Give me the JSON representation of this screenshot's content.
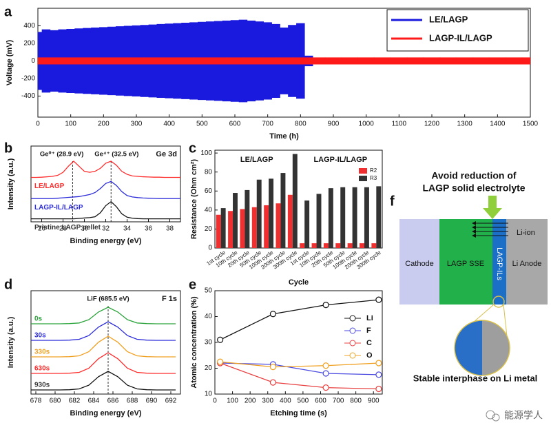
{
  "chart_data": [
    {
      "panel": "a",
      "type": "band",
      "xlabel": "Time (h)",
      "ylabel": "Voltage (mV)",
      "xlim": [
        0,
        1500
      ],
      "xticks": [
        0,
        100,
        200,
        300,
        400,
        500,
        600,
        700,
        800,
        900,
        1000,
        1100,
        1200,
        1300,
        1400,
        1500
      ],
      "ylim": [
        -640,
        600
      ],
      "yticks": [
        -400,
        -200,
        0,
        200,
        400
      ],
      "legend": "upper right",
      "series": [
        {
          "name": "LE/LAGP",
          "color": "#1a1adf",
          "x": [
            0,
            25,
            50,
            75,
            100,
            125,
            150,
            175,
            200,
            225,
            250,
            275,
            300,
            325,
            350,
            375,
            400,
            425,
            450,
            475,
            500,
            525,
            550,
            575,
            600,
            625,
            650,
            675,
            700,
            725,
            750,
            775,
            800,
            825
          ],
          "upper": [
            330,
            360,
            350,
            360,
            365,
            370,
            375,
            380,
            385,
            390,
            395,
            400,
            405,
            410,
            415,
            420,
            425,
            430,
            435,
            440,
            445,
            450,
            455,
            460,
            465,
            470,
            460,
            450,
            440,
            420,
            380,
            410,
            430,
            60
          ],
          "lower": [
            -330,
            -360,
            -350,
            -360,
            -365,
            -370,
            -375,
            -380,
            -385,
            -390,
            -395,
            -400,
            -405,
            -410,
            -415,
            -420,
            -425,
            -430,
            -435,
            -440,
            -445,
            -450,
            -455,
            -460,
            -465,
            -470,
            -460,
            -450,
            -440,
            -420,
            -380,
            -410,
            -430,
            -60
          ]
        },
        {
          "name": "LAGP-IL/LAGP",
          "color": "#ff1a1a",
          "x": [
            0,
            50,
            100,
            150,
            200,
            250,
            300,
            350,
            400,
            450,
            500,
            550,
            600,
            650,
            700,
            750,
            800,
            850,
            900,
            950,
            1000,
            1050,
            1100,
            1150,
            1200,
            1250,
            1300,
            1350,
            1400,
            1450,
            1500
          ],
          "upper": [
            40,
            40,
            40,
            40,
            40,
            40,
            40,
            40,
            40,
            40,
            40,
            40,
            40,
            40,
            40,
            40,
            40,
            40,
            40,
            40,
            40,
            40,
            40,
            40,
            40,
            40,
            40,
            40,
            40,
            40,
            40
          ],
          "lower": [
            -40,
            -40,
            -40,
            -40,
            -40,
            -40,
            -40,
            -40,
            -40,
            -40,
            -40,
            -40,
            -40,
            -40,
            -40,
            -40,
            -40,
            -40,
            -40,
            -40,
            -40,
            -40,
            -40,
            -40,
            -40,
            -40,
            -40,
            -40,
            -40,
            -40,
            -40
          ]
        }
      ]
    },
    {
      "panel": "b",
      "type": "line",
      "title": "Ge 3d",
      "xlabel": "Binding energy (eV)",
      "ylabel": "Intensity (a.u.)",
      "xlim": [
        25,
        39
      ],
      "xticks": [
        26,
        28,
        30,
        32,
        34,
        36,
        38
      ],
      "ylim": [
        -0.15,
        3.6
      ],
      "vlines": [
        28.9,
        32.5
      ],
      "annotations": [
        "Ge⁰⁺ (28.9 eV)",
        "Ge⁴⁺ (32.5 eV)"
      ],
      "x": [
        25,
        25.5,
        26,
        26.5,
        27,
        27.5,
        28,
        28.5,
        29,
        29.5,
        30,
        30.5,
        31,
        31.5,
        32,
        32.5,
        33,
        33.5,
        34,
        34.5,
        35,
        35.5,
        36,
        36.5,
        37,
        37.5,
        38,
        38.5,
        39
      ],
      "series": [
        {
          "name": "LE/LAGP",
          "color": "#ff2a2a",
          "values": [
            2.05,
            2.05,
            2.06,
            2.08,
            2.1,
            2.15,
            2.3,
            2.6,
            2.85,
            2.6,
            2.35,
            2.3,
            2.35,
            2.5,
            2.75,
            2.85,
            2.65,
            2.35,
            2.2,
            2.12,
            2.1,
            2.08,
            2.07,
            2.06,
            2.06,
            2.05,
            2.05,
            2.05,
            2.05
          ]
        },
        {
          "name": "LAGP-IL/LAGP",
          "color": "#2b2bd9",
          "values": [
            1.0,
            1.0,
            1.0,
            1.0,
            1.0,
            1.02,
            1.04,
            1.06,
            1.08,
            1.1,
            1.15,
            1.2,
            1.3,
            1.5,
            1.75,
            1.85,
            1.65,
            1.35,
            1.15,
            1.08,
            1.05,
            1.03,
            1.02,
            1.01,
            1.0,
            1.0,
            1.0,
            1.0,
            1.0
          ]
        },
        {
          "name": "Pristine LAGP pellet",
          "color": "#111111",
          "values": [
            0,
            0,
            0,
            0,
            0,
            0,
            0,
            0,
            0,
            0.02,
            0.04,
            0.06,
            0.1,
            0.3,
            0.65,
            0.85,
            0.6,
            0.25,
            0.08,
            0.03,
            0.01,
            0,
            0,
            0,
            0,
            0,
            0,
            0,
            0
          ]
        }
      ]
    },
    {
      "panel": "c",
      "type": "bar",
      "xlabel": "Cycle",
      "ylabel": "Resistance (Ohm cm²)",
      "ylim": [
        0,
        103
      ],
      "yticks": [
        0,
        20,
        40,
        60,
        80,
        100
      ],
      "legend": "upper right",
      "group_labels": [
        "LE/LAGP",
        "LAGP-IL/LAGP"
      ],
      "categories": [
        "1st cycle",
        "10th cycle",
        "20th cycle",
        "50th cycle",
        "100th cycle",
        "200th cycle",
        "300th cycle",
        "1st cycle",
        "10th cycle",
        "20th cycle",
        "50th cycle",
        "100th cycle",
        "200th cycle",
        "300th cycle"
      ],
      "series": [
        {
          "name": "R2",
          "color": "#f03030",
          "values": [
            35,
            39,
            41,
            43,
            45,
            47,
            56,
            5,
            5,
            5,
            5,
            5,
            5,
            5
          ]
        },
        {
          "name": "R3",
          "color": "#333333",
          "values": [
            42,
            58,
            61,
            72,
            73,
            79,
            99,
            50,
            57,
            63,
            64,
            64,
            64,
            65
          ]
        }
      ]
    },
    {
      "panel": "d",
      "type": "line",
      "title": "F 1s",
      "xlabel": "Binding energy (eV)",
      "ylabel": "Intensity (a.u.)",
      "xlim": [
        677.5,
        693
      ],
      "xticks": [
        678,
        680,
        682,
        684,
        686,
        688,
        690,
        692
      ],
      "ylim": [
        -0.2,
        4.8
      ],
      "vlines": [
        685.5
      ],
      "annotations": [
        "LiF (685.5 eV)"
      ],
      "x": [
        677.5,
        678.5,
        679.5,
        680.5,
        681.5,
        682.5,
        683.5,
        684.5,
        685.5,
        686.5,
        687.5,
        688.5,
        689.5,
        690.5,
        691.5,
        692.5
      ],
      "series": [
        {
          "name": "0s",
          "color": "#2aa33a",
          "values": [
            3.2,
            3.2,
            3.2,
            3.2,
            3.21,
            3.24,
            3.4,
            3.77,
            4.0,
            3.77,
            3.4,
            3.24,
            3.21,
            3.2,
            3.2,
            3.2
          ]
        },
        {
          "name": "30s",
          "color": "#2b2bd9",
          "values": [
            2.4,
            2.4,
            2.4,
            2.4,
            2.41,
            2.45,
            2.63,
            3.04,
            3.3,
            3.04,
            2.63,
            2.45,
            2.41,
            2.4,
            2.4,
            2.4
          ]
        },
        {
          "name": "330s",
          "color": "#f0a020",
          "values": [
            1.6,
            1.6,
            1.6,
            1.6,
            1.61,
            1.65,
            1.85,
            2.31,
            2.6,
            2.31,
            1.85,
            1.65,
            1.61,
            1.6,
            1.6,
            1.6
          ]
        },
        {
          "name": "630s",
          "color": "#ff2a2a",
          "values": [
            0.8,
            0.8,
            0.8,
            0.8,
            0.81,
            0.85,
            1.05,
            1.51,
            1.8,
            1.51,
            1.05,
            0.85,
            0.81,
            0.8,
            0.8,
            0.8
          ]
        },
        {
          "name": "930s",
          "color": "#111111",
          "values": [
            0,
            0,
            0,
            0,
            0.01,
            0.05,
            0.23,
            0.64,
            0.9,
            0.64,
            0.23,
            0.05,
            0.01,
            0,
            0,
            0
          ]
        }
      ]
    },
    {
      "panel": "e",
      "type": "line",
      "markers": "open-circle",
      "xlabel": "Etching time (s)",
      "ylabel": "Atomic concentration (%)",
      "xlim": [
        0,
        950
      ],
      "xticks": [
        0,
        100,
        200,
        300,
        400,
        500,
        600,
        700,
        800,
        900
      ],
      "ylim": [
        10,
        50
      ],
      "yticks": [
        10,
        20,
        30,
        40,
        50
      ],
      "legend": "right",
      "x": [
        30,
        330,
        630,
        930
      ],
      "series": [
        {
          "name": "Li",
          "color": "#111111",
          "values": [
            31,
            41,
            44.5,
            46.5
          ]
        },
        {
          "name": "F",
          "color": "#4a4ae0",
          "values": [
            22,
            21.5,
            18,
            17.5
          ]
        },
        {
          "name": "C",
          "color": "#e84040",
          "values": [
            22,
            14.5,
            12.5,
            12
          ]
        },
        {
          "name": "O",
          "color": "#f0a020",
          "values": [
            22.5,
            20.5,
            21,
            22
          ]
        }
      ]
    }
  ],
  "diagram": {
    "panel": "f",
    "heading": [
      "Avoid reduction of",
      "LAGP solid electrolyte"
    ],
    "cathode": "Cathode",
    "sse": "LAGP SSE",
    "interlayer": "LAGP-ILs",
    "anode": "Li Anode",
    "ion": "Li-ion",
    "caption": "Stable interphase on Li metal"
  },
  "watermark": "能源学人"
}
